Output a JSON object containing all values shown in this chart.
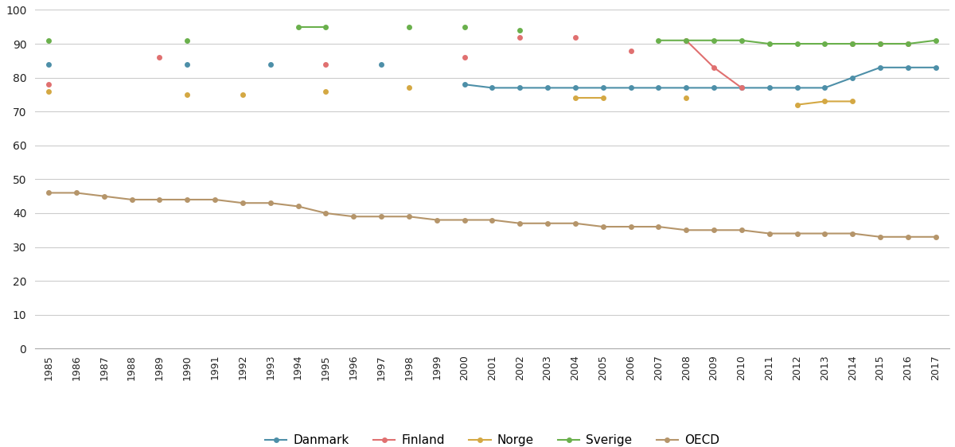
{
  "series": {
    "Danmark": {
      "color": "#4d8fa8",
      "years": [
        1985,
        1990,
        1993,
        1997,
        2000,
        2001,
        2002,
        2003,
        2004,
        2005,
        2006,
        2007,
        2008,
        2009,
        2010,
        2011,
        2012,
        2013,
        2014,
        2015,
        2016,
        2017
      ],
      "values": [
        84,
        84,
        84,
        84,
        78,
        77,
        77,
        77,
        77,
        77,
        77,
        77,
        77,
        77,
        77,
        77,
        77,
        77,
        80,
        83,
        83,
        83
      ]
    },
    "Finland": {
      "color": "#e07070",
      "years": [
        1985,
        1989,
        1995,
        2000,
        2002,
        2004,
        2006,
        2008,
        2009,
        2010,
        2014,
        2015,
        2016
      ],
      "values": [
        78,
        86,
        84,
        86,
        92,
        92,
        88,
        91,
        83,
        77,
        90,
        90,
        90
      ]
    },
    "Norge": {
      "color": "#d4a843",
      "years": [
        1985,
        1990,
        1992,
        1995,
        1998,
        2004,
        2005,
        2008,
        2012,
        2013,
        2014
      ],
      "values": [
        76,
        75,
        75,
        76,
        77,
        74,
        74,
        74,
        72,
        73,
        73
      ]
    },
    "Sverige": {
      "color": "#6ab04c",
      "years": [
        1985,
        1990,
        1994,
        1995,
        1998,
        2000,
        2002,
        2007,
        2008,
        2009,
        2010,
        2011,
        2012,
        2013,
        2014,
        2015,
        2016,
        2017
      ],
      "values": [
        91,
        91,
        95,
        95,
        95,
        95,
        94,
        91,
        91,
        91,
        91,
        90,
        90,
        90,
        90,
        90,
        90,
        91
      ]
    },
    "OECD": {
      "color": "#b5956a",
      "years": [
        1985,
        1986,
        1987,
        1988,
        1989,
        1990,
        1991,
        1992,
        1993,
        1994,
        1995,
        1996,
        1997,
        1998,
        1999,
        2000,
        2001,
        2002,
        2003,
        2004,
        2005,
        2006,
        2007,
        2008,
        2009,
        2010,
        2011,
        2012,
        2013,
        2014,
        2015,
        2016,
        2017
      ],
      "values": [
        46,
        46,
        45,
        44,
        44,
        44,
        44,
        43,
        43,
        42,
        40,
        39,
        39,
        39,
        38,
        38,
        38,
        37,
        37,
        37,
        36,
        36,
        36,
        35,
        35,
        35,
        34,
        34,
        34,
        34,
        33,
        33,
        33
      ]
    }
  },
  "consecutive_threshold": 1,
  "ylim": [
    0,
    100
  ],
  "yticks": [
    0,
    10,
    20,
    30,
    40,
    50,
    60,
    70,
    80,
    90,
    100
  ],
  "legend_order": [
    "Danmark",
    "Finland",
    "Norge",
    "Sverige",
    "OECD"
  ],
  "background_color": "#ffffff",
  "grid_color": "#cccccc",
  "marker_size": 5,
  "linewidth": 1.5
}
